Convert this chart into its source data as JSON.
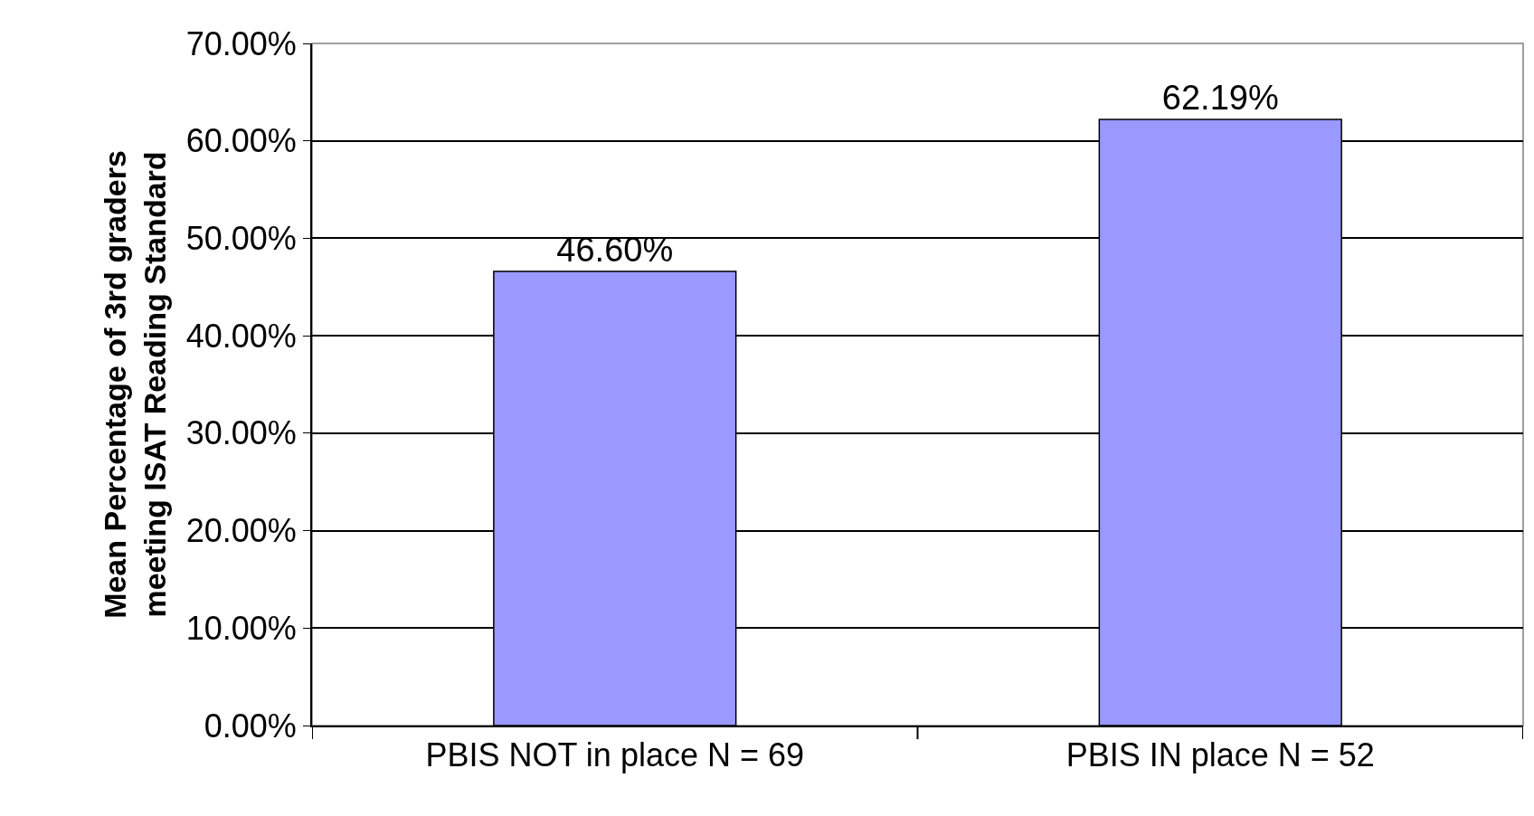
{
  "chart_data": {
    "type": "bar",
    "ylabel": "Mean Percentage of 3rd graders\nmeeting ISAT Reading Standard",
    "categories": [
      "PBIS NOT in place N = 69",
      "PBIS IN place N = 52"
    ],
    "values": [
      46.6,
      62.19
    ],
    "value_labels": [
      "46.60%",
      "62.19%"
    ],
    "color": "#9999ff",
    "ylim": [
      0,
      70
    ],
    "yticks": [
      {
        "value": 0,
        "label": "0.00%"
      },
      {
        "value": 10,
        "label": "10.00%"
      },
      {
        "value": 20,
        "label": "20.00%"
      },
      {
        "value": 30,
        "label": "30.00%"
      },
      {
        "value": 40,
        "label": "40.00%"
      },
      {
        "value": 50,
        "label": "50.00%"
      },
      {
        "value": 60,
        "label": "60.00%"
      },
      {
        "value": 70,
        "label": "70.00%"
      }
    ],
    "grid": "y"
  }
}
